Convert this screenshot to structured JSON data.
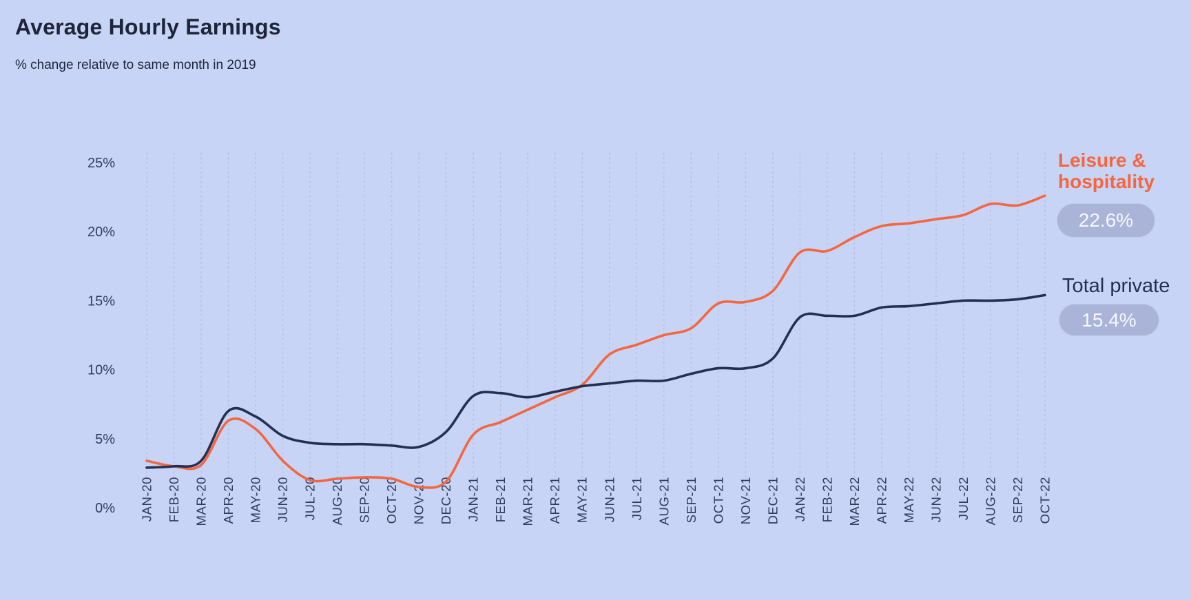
{
  "header": {
    "title": "Average Hourly Earnings",
    "subtitle": "% change relative to same month in 2019"
  },
  "chart_data": {
    "type": "line",
    "title": "Average Hourly Earnings",
    "subtitle": "% change relative to same month in 2019",
    "x": [
      "JAN-20",
      "FEB-20",
      "MAR-20",
      "APR-20",
      "MAY-20",
      "JUN-20",
      "JUL-20",
      "AUG-20",
      "SEP-20",
      "OCT-20",
      "NOV-20",
      "DEC-20",
      "JAN-21",
      "FEB-21",
      "MAR-21",
      "APR-21",
      "MAY-21",
      "JUN-21",
      "JUL-21",
      "AUG-21",
      "SEP-21",
      "OCT-21",
      "NOV-21",
      "DEC-21",
      "JAN-22",
      "FEB-22",
      "MAR-22",
      "APR-22",
      "MAY-22",
      "JUN-22",
      "JUL-22",
      "AUG-22",
      "SEP-22",
      "OCT-22"
    ],
    "ylim": [
      0,
      25
    ],
    "yticks": [
      0,
      5,
      10,
      15,
      20,
      25
    ],
    "ytick_suffix": "%",
    "grid": "vertical-dotted-monthly",
    "legend_position": "right",
    "series": [
      {
        "name": "Leisure & hospitality",
        "color": "#f5663f",
        "end_label": "22.6%",
        "values": [
          3.4,
          3.0,
          3.1,
          6.3,
          5.7,
          3.4,
          2.0,
          2.1,
          2.2,
          2.1,
          1.5,
          1.9,
          5.3,
          6.2,
          7.1,
          8.0,
          8.9,
          11.1,
          11.8,
          12.5,
          13.0,
          14.8,
          14.9,
          15.7,
          18.5,
          18.6,
          19.6,
          20.4,
          20.6,
          20.9,
          21.2,
          22.0,
          21.9,
          22.6
        ]
      },
      {
        "name": "Total private",
        "color": "#252f51",
        "end_label": "15.4%",
        "values": [
          2.9,
          3.0,
          3.4,
          7.0,
          6.6,
          5.2,
          4.7,
          4.6,
          4.6,
          4.5,
          4.4,
          5.5,
          8.1,
          8.3,
          8.0,
          8.4,
          8.8,
          9.0,
          9.2,
          9.2,
          9.7,
          10.1,
          10.1,
          10.8,
          13.8,
          13.9,
          13.9,
          14.5,
          14.6,
          14.8,
          15.0,
          15.0,
          15.1,
          15.4
        ]
      }
    ],
    "colors": {
      "background": "#c7d4f6",
      "gridline": "#afbde7",
      "axis_text": "#313b5f",
      "title_text": "#1e2439",
      "pill_background": "#a9b4d8",
      "pill_text": "#f6f8ff"
    }
  }
}
